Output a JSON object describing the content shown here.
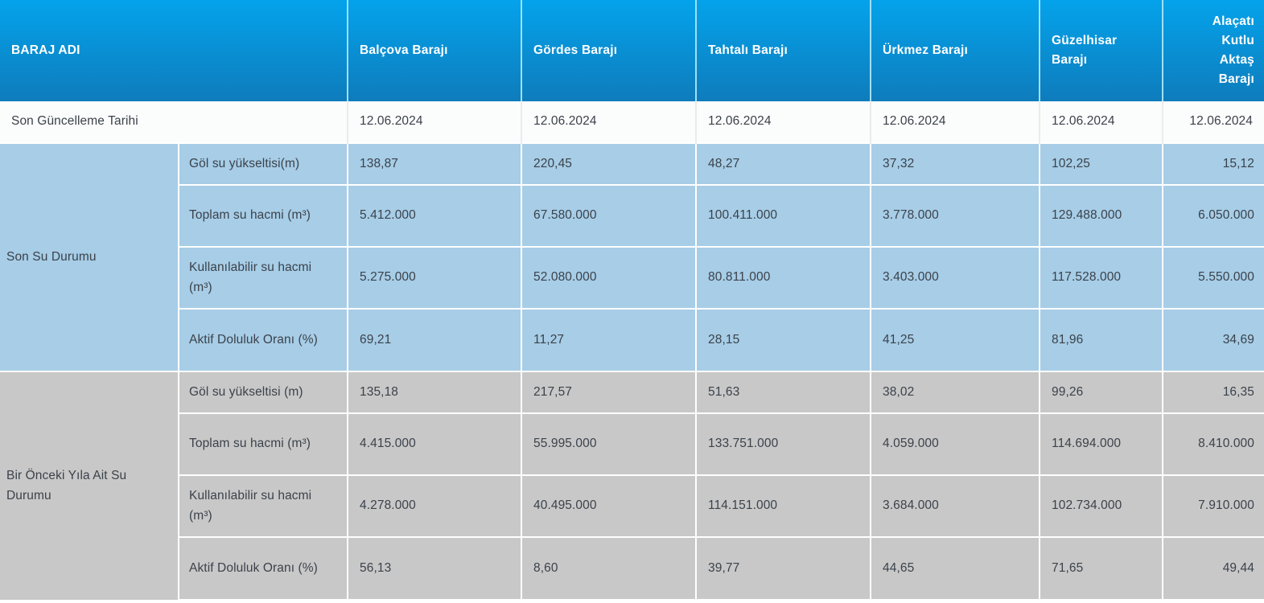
{
  "table": {
    "corner_header": "BARAJ ADI",
    "columns": [
      "Balçova Barajı",
      "Gördes Barajı",
      "Tahtalı Barajı",
      "Ürkmez Barajı",
      "Güzelhisar Barajı",
      "Alaçatı Kutlu Aktaş Barajı"
    ],
    "update_row": {
      "label": "Son Güncelleme Tarihi",
      "values": [
        "12.06.2024",
        "12.06.2024",
        "12.06.2024",
        "12.06.2024",
        "12.06.2024",
        "12.06.2024"
      ]
    },
    "sections": [
      {
        "title": "Son Su Durumu",
        "rows": [
          {
            "label": "Göl su yükseltisi(m)",
            "values": [
              "138,87",
              "220,45",
              "48,27",
              "37,32",
              "102,25",
              "15,12"
            ]
          },
          {
            "label": "Toplam su hacmi (m³)",
            "values": [
              "5.412.000",
              "67.580.000",
              "100.411.000",
              "3.778.000",
              "129.488.000",
              "6.050.000"
            ]
          },
          {
            "label": "Kullanılabilir su hacmi (m³)",
            "values": [
              "5.275.000",
              "52.080.000",
              "80.811.000",
              "3.403.000",
              "117.528.000",
              "5.550.000"
            ]
          },
          {
            "label": "Aktif Doluluk Oranı (%)",
            "values": [
              "69,21",
              "11,27",
              "28,15",
              "41,25",
              "81,96",
              "34,69"
            ]
          }
        ]
      },
      {
        "title": "Bir Önceki Yıla Ait Su Durumu",
        "rows": [
          {
            "label": "Göl su yükseltisi (m)",
            "values": [
              "135,18",
              "217,57",
              "51,63",
              "38,02",
              "99,26",
              "16,35"
            ]
          },
          {
            "label": "Toplam su hacmi (m³)",
            "values": [
              "4.415.000",
              "55.995.000",
              "133.751.000",
              "4.059.000",
              "114.694.000",
              "8.410.000"
            ]
          },
          {
            "label": "Kullanılabilir su hacmi (m³)",
            "values": [
              "4.278.000",
              "40.495.000",
              "114.151.000",
              "3.684.000",
              "102.734.000",
              "7.910.000"
            ]
          },
          {
            "label": "Aktif Doluluk Oranı (%)",
            "values": [
              "56,13",
              "8,60",
              "39,77",
              "44,65",
              "71,65",
              "49,44"
            ]
          }
        ]
      }
    ]
  },
  "colors": {
    "header_top": "#04a3eb",
    "header_bottom": "#0e7cbc",
    "header_divider": "#a0e0f6",
    "section_blue": "#a7cde7",
    "section_gray": "#c8c8c8",
    "date_bg": "#fbfcfc",
    "body_border": "#ffffff",
    "date_border": "#e9eced",
    "text_dark": "#3b424a",
    "text_header": "#ffffff"
  }
}
